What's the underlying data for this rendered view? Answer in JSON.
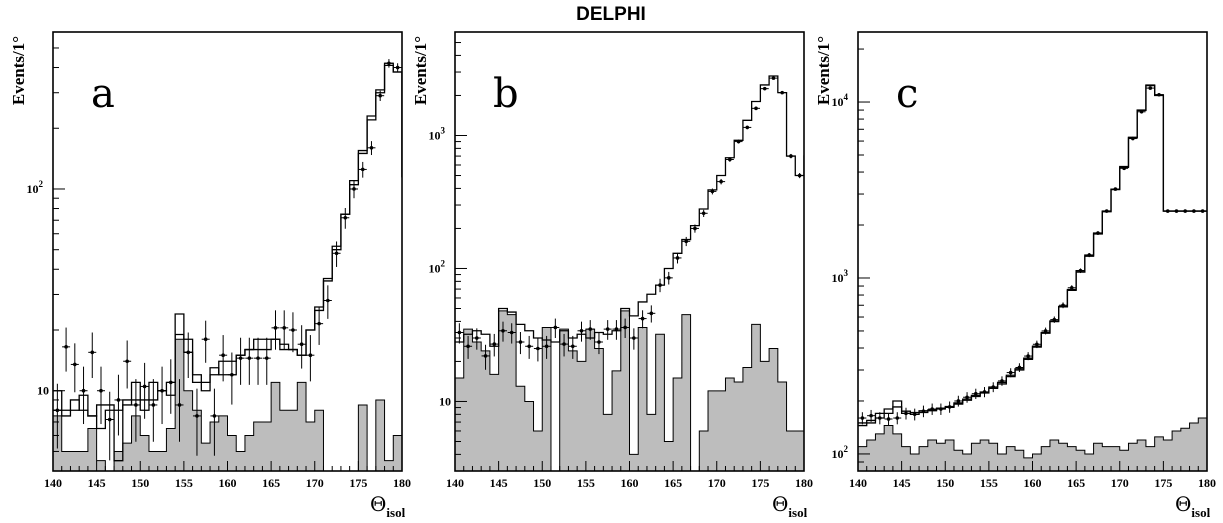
{
  "figure": {
    "title": "DELPHI"
  },
  "chart_data": [
    {
      "type": "histogram",
      "panel_label": "a",
      "ylabel": "Events/1°",
      "xlabel": "Θ",
      "xlabel_sub": "isol",
      "xlim": [
        140,
        180
      ],
      "ylim": [
        4,
        600
      ],
      "yscale": "log",
      "xticks": [
        "140",
        "145",
        "150",
        "155",
        "160",
        "165",
        "170",
        "175",
        "180"
      ],
      "yticks": [
        {
          "value": 10,
          "label": "10"
        },
        {
          "value": 100,
          "label": "10",
          "sup": "2"
        }
      ],
      "bin_edges_start": 140,
      "bin_width": 1,
      "data": [
        8,
        16.5,
        13.5,
        10,
        15.5,
        10,
        7.2,
        9,
        14,
        8.5,
        10.5,
        8.5,
        10,
        11,
        8.5,
        15.5,
        7.5,
        18,
        7.5,
        15,
        12,
        14.5,
        14.5,
        14.5,
        14.5,
        20.5,
        20.5,
        20,
        17,
        15,
        21.5,
        28,
        48,
        72,
        100,
        125,
        160,
        290,
        420,
        400,
        160
      ],
      "mc_total": [
        10,
        7.5,
        8,
        9.5,
        7.5,
        6.5,
        8,
        8,
        9,
        11,
        9,
        11,
        10,
        11,
        24,
        18,
        12,
        11,
        12,
        14,
        14,
        15,
        16,
        16,
        16,
        18,
        16,
        16,
        15,
        20,
        25,
        35,
        52,
        75,
        110,
        155,
        230,
        310,
        420,
        380,
        115
      ],
      "mc_total_alt": [
        8,
        8,
        9,
        8,
        7.5,
        8.5,
        8.5,
        4.5,
        8.5,
        9,
        8,
        9,
        10,
        9.5,
        19,
        15.5,
        11,
        10,
        13,
        12,
        12,
        15,
        16,
        18,
        18,
        18,
        17,
        16,
        15,
        20,
        26,
        36,
        50,
        75,
        105,
        150,
        220,
        300,
        410,
        380,
        115
      ],
      "background": [
        7.5,
        5,
        5,
        5,
        6.5,
        4.5,
        4,
        5,
        5.5,
        7.5,
        6,
        5,
        5,
        6.5,
        18,
        10,
        8,
        5.5,
        7,
        7.5,
        6,
        5,
        6,
        7,
        7,
        11,
        8,
        8,
        11,
        7,
        8,
        4,
        0,
        0,
        0,
        8.5,
        0,
        9,
        4.5,
        6,
        4.5
      ]
    },
    {
      "type": "histogram",
      "panel_label": "b",
      "ylabel": "Events/1°",
      "xlabel": "Θ",
      "xlabel_sub": "isol",
      "xlim": [
        140,
        180
      ],
      "ylim": [
        3,
        6000
      ],
      "yscale": "log",
      "xticks": [
        "140",
        "145",
        "150",
        "155",
        "160",
        "165",
        "170",
        "175",
        "180"
      ],
      "yticks": [
        {
          "value": 10,
          "label": "10"
        },
        {
          "value": 100,
          "label": "10",
          "sup": "2"
        },
        {
          "value": 1000,
          "label": "10",
          "sup": "3"
        }
      ],
      "bin_edges_start": 140,
      "bin_width": 1,
      "data": [
        33,
        26,
        30,
        22,
        27,
        34,
        33,
        28,
        26,
        25,
        26,
        36,
        27,
        26,
        34,
        35,
        28,
        35,
        35,
        36,
        30,
        42,
        46,
        75,
        85,
        120,
        160,
        200,
        260,
        380,
        450,
        660,
        900,
        1150,
        1600,
        2250,
        2700,
        2100,
        700,
        500,
        700
      ],
      "mc_total": [
        28,
        32,
        34,
        32,
        26,
        50,
        47,
        38,
        34,
        30,
        29,
        28,
        34,
        30,
        32,
        30,
        33,
        32,
        34,
        50,
        44,
        56,
        64,
        75,
        100,
        130,
        165,
        210,
        280,
        390,
        500,
        680,
        920,
        1300,
        1800,
        2400,
        2800,
        2100,
        700,
        500,
        700
      ],
      "background": [
        15,
        35,
        28,
        24,
        16,
        48,
        45,
        13,
        10,
        6,
        36,
        2.5,
        35,
        24,
        20,
        35,
        25,
        8,
        17,
        48,
        4,
        36,
        8,
        32,
        5,
        15,
        45,
        2.5,
        6,
        12,
        12,
        15,
        14,
        18,
        38,
        20,
        25,
        14,
        6,
        6,
        3
      ]
    },
    {
      "type": "histogram",
      "panel_label": "c",
      "ylabel": "Events/1°",
      "xlabel": "Θ",
      "xlabel_sub": "isol",
      "xlim": [
        140,
        180
      ],
      "ylim": [
        80,
        25000
      ],
      "yscale": "log",
      "xticks": [
        "140",
        "145",
        "150",
        "155",
        "160",
        "165",
        "170",
        "175",
        "180"
      ],
      "yticks": [
        {
          "value": 100,
          "label": "10",
          "sup": "2"
        },
        {
          "value": 1000,
          "label": "10",
          "sup": "3"
        },
        {
          "value": 10000,
          "label": "10",
          "sup": "4"
        }
      ],
      "bin_edges_start": 140,
      "bin_width": 1,
      "data": [
        160,
        165,
        160,
        158,
        160,
        170,
        168,
        175,
        180,
        180,
        185,
        200,
        210,
        220,
        225,
        240,
        260,
        290,
        310,
        360,
        420,
        500,
        580,
        700,
        880,
        1100,
        1350,
        1800,
        2400,
        3200,
        4200,
        6200,
        8800,
        12000,
        11000,
        2400,
        2400,
        2400,
        2400,
        2400,
        2400
      ],
      "mc_total": [
        150,
        155,
        170,
        180,
        200,
        175,
        172,
        176,
        178,
        182,
        186,
        195,
        205,
        215,
        225,
        240,
        255,
        280,
        305,
        350,
        410,
        490,
        570,
        690,
        860,
        1100,
        1350,
        1800,
        2400,
        3200,
        4300,
        6300,
        9000,
        12500,
        11000,
        2400,
        2400,
        2400,
        2400,
        2400,
        2400
      ],
      "mc_total_alt": [
        145,
        150,
        160,
        170,
        185,
        170,
        168,
        172,
        176,
        180,
        184,
        192,
        202,
        212,
        222,
        236,
        250,
        275,
        300,
        345,
        405,
        485,
        565,
        685,
        850,
        1080,
        1330,
        1780,
        2380,
        3180,
        4250,
        6250,
        8950,
        12400,
        10900,
        2400,
        2400,
        2400,
        2400,
        2400,
        2400
      ],
      "background": [
        110,
        120,
        130,
        145,
        130,
        110,
        100,
        110,
        120,
        115,
        120,
        105,
        100,
        115,
        120,
        115,
        100,
        110,
        105,
        95,
        100,
        110,
        120,
        115,
        110,
        105,
        100,
        115,
        110,
        110,
        105,
        115,
        120,
        110,
        125,
        120,
        135,
        140,
        150,
        160,
        110
      ]
    }
  ]
}
